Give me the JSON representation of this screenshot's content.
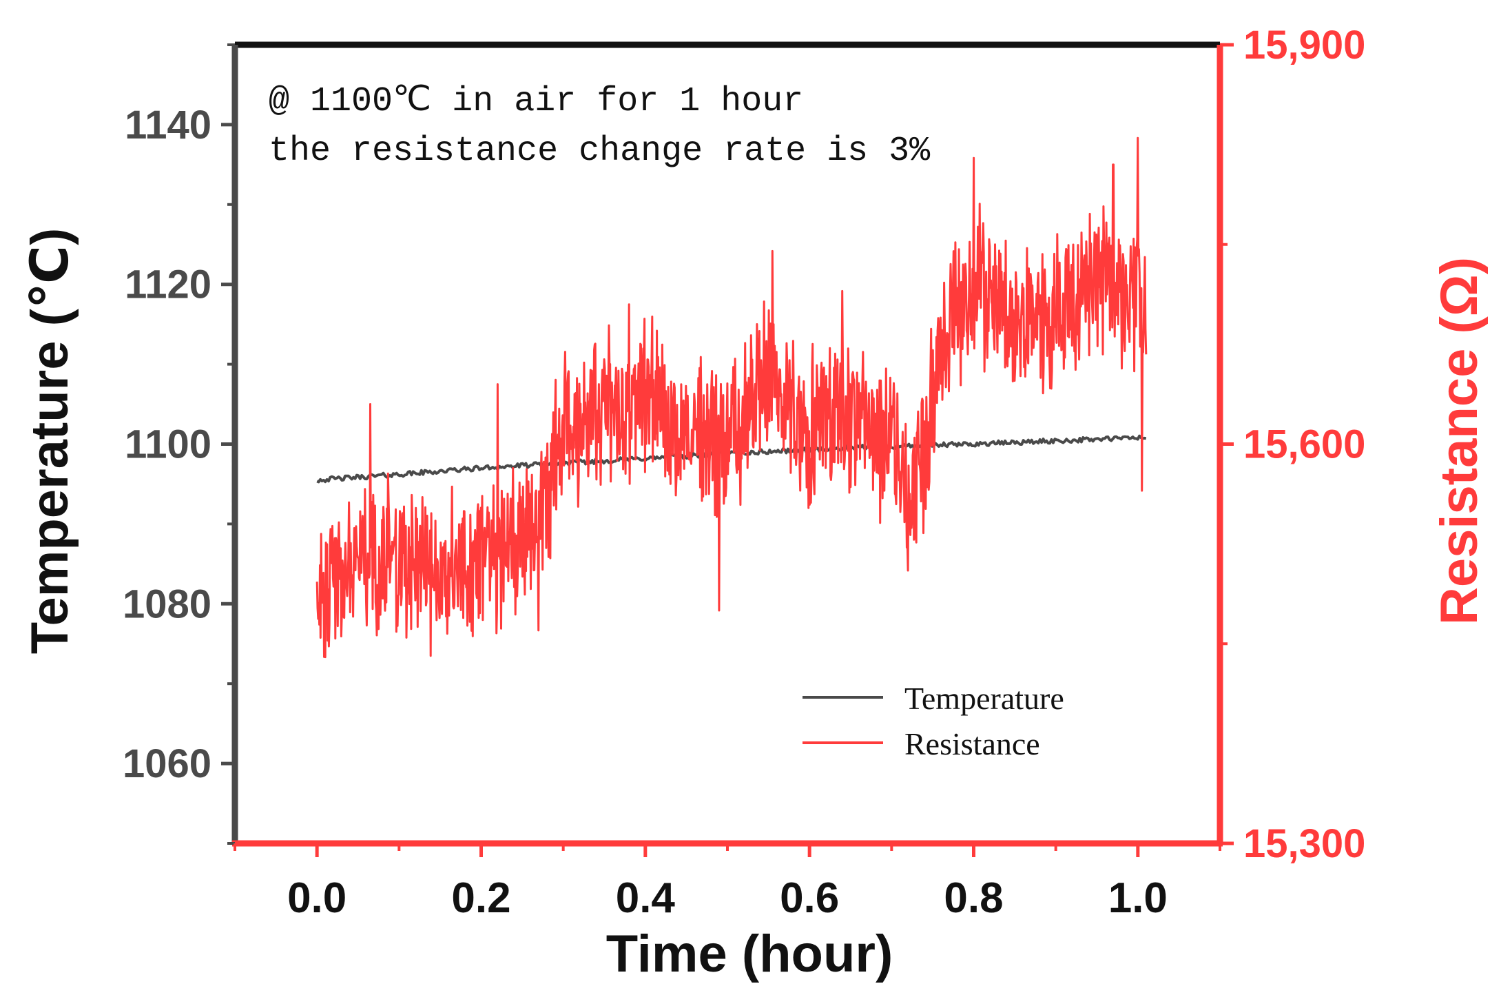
{
  "chart_data": {
    "type": "line",
    "title": "",
    "xlabel": "Time (hour)",
    "ylabel_left": "Temperature (℃)",
    "ylabel_right": "Resistance (Ω)",
    "xlim": [
      -0.1,
      1.1
    ],
    "ylim_left": [
      1050,
      1150
    ],
    "ylim_right": [
      15300,
      15900
    ],
    "x_ticks": [
      "0.0",
      "0.2",
      "0.4",
      "0.6",
      "0.8",
      "1.0"
    ],
    "x_tick_values": [
      0.0,
      0.2,
      0.4,
      0.6,
      0.8,
      1.0
    ],
    "y_ticks_left": [
      "1060",
      "1080",
      "1100",
      "1120",
      "1140"
    ],
    "y_tick_values_left": [
      1060,
      1080,
      1100,
      1120,
      1140
    ],
    "y_ticks_right": [
      "15,300",
      "15,600",
      "15,900"
    ],
    "y_tick_values_right": [
      15300,
      15600,
      15900
    ],
    "annotations": [
      "@ 1100℃ in air for 1 hour",
      "the resistance change rate is 3%"
    ],
    "legend": {
      "position": "bottom-right",
      "entries": [
        "Temperature",
        "Resistance"
      ]
    },
    "series": [
      {
        "name": "Temperature",
        "axis": "left",
        "color": "#4a4a4a",
        "x": [
          0.0,
          0.1,
          0.2,
          0.3,
          0.4,
          0.5,
          0.6,
          0.7,
          0.8,
          0.9,
          1.0,
          1.01
        ],
        "values": [
          1095.5,
          1096.2,
          1097.0,
          1097.6,
          1098.2,
          1098.8,
          1099.3,
          1099.7,
          1100.0,
          1100.4,
          1100.8,
          1100.8
        ],
        "noise": 0.3
      },
      {
        "name": "Resistance",
        "axis": "right",
        "color": "#ff3b3b",
        "x": [
          0.0,
          0.03,
          0.06,
          0.1,
          0.15,
          0.2,
          0.25,
          0.28,
          0.3,
          0.35,
          0.4,
          0.45,
          0.5,
          0.55,
          0.6,
          0.65,
          0.7,
          0.72,
          0.74,
          0.76,
          0.8,
          0.85,
          0.9,
          0.95,
          1.0,
          1.01
        ],
        "values": [
          15490,
          15500,
          15520,
          15510,
          15500,
          15510,
          15530,
          15560,
          15610,
          15630,
          15640,
          15610,
          15600,
          15650,
          15610,
          15620,
          15600,
          15560,
          15590,
          15680,
          15720,
          15700,
          15700,
          15730,
          15700,
          15680
        ],
        "noise": 48,
        "min": 15440,
        "max": 15830,
        "spikes": [
          {
            "x": 0.01,
            "value": 15440
          },
          {
            "x": 0.065,
            "value": 15630
          },
          {
            "x": 0.22,
            "value": 15645
          },
          {
            "x": 0.27,
            "value": 15460
          },
          {
            "x": 0.38,
            "value": 15705
          },
          {
            "x": 0.49,
            "value": 15475
          },
          {
            "x": 0.555,
            "value": 15745
          },
          {
            "x": 0.64,
            "value": 15715
          },
          {
            "x": 0.72,
            "value": 15505
          },
          {
            "x": 0.8,
            "value": 15815
          },
          {
            "x": 0.97,
            "value": 15810
          },
          {
            "x": 1.0,
            "value": 15830
          },
          {
            "x": 1.005,
            "value": 15565
          }
        ]
      }
    ]
  }
}
